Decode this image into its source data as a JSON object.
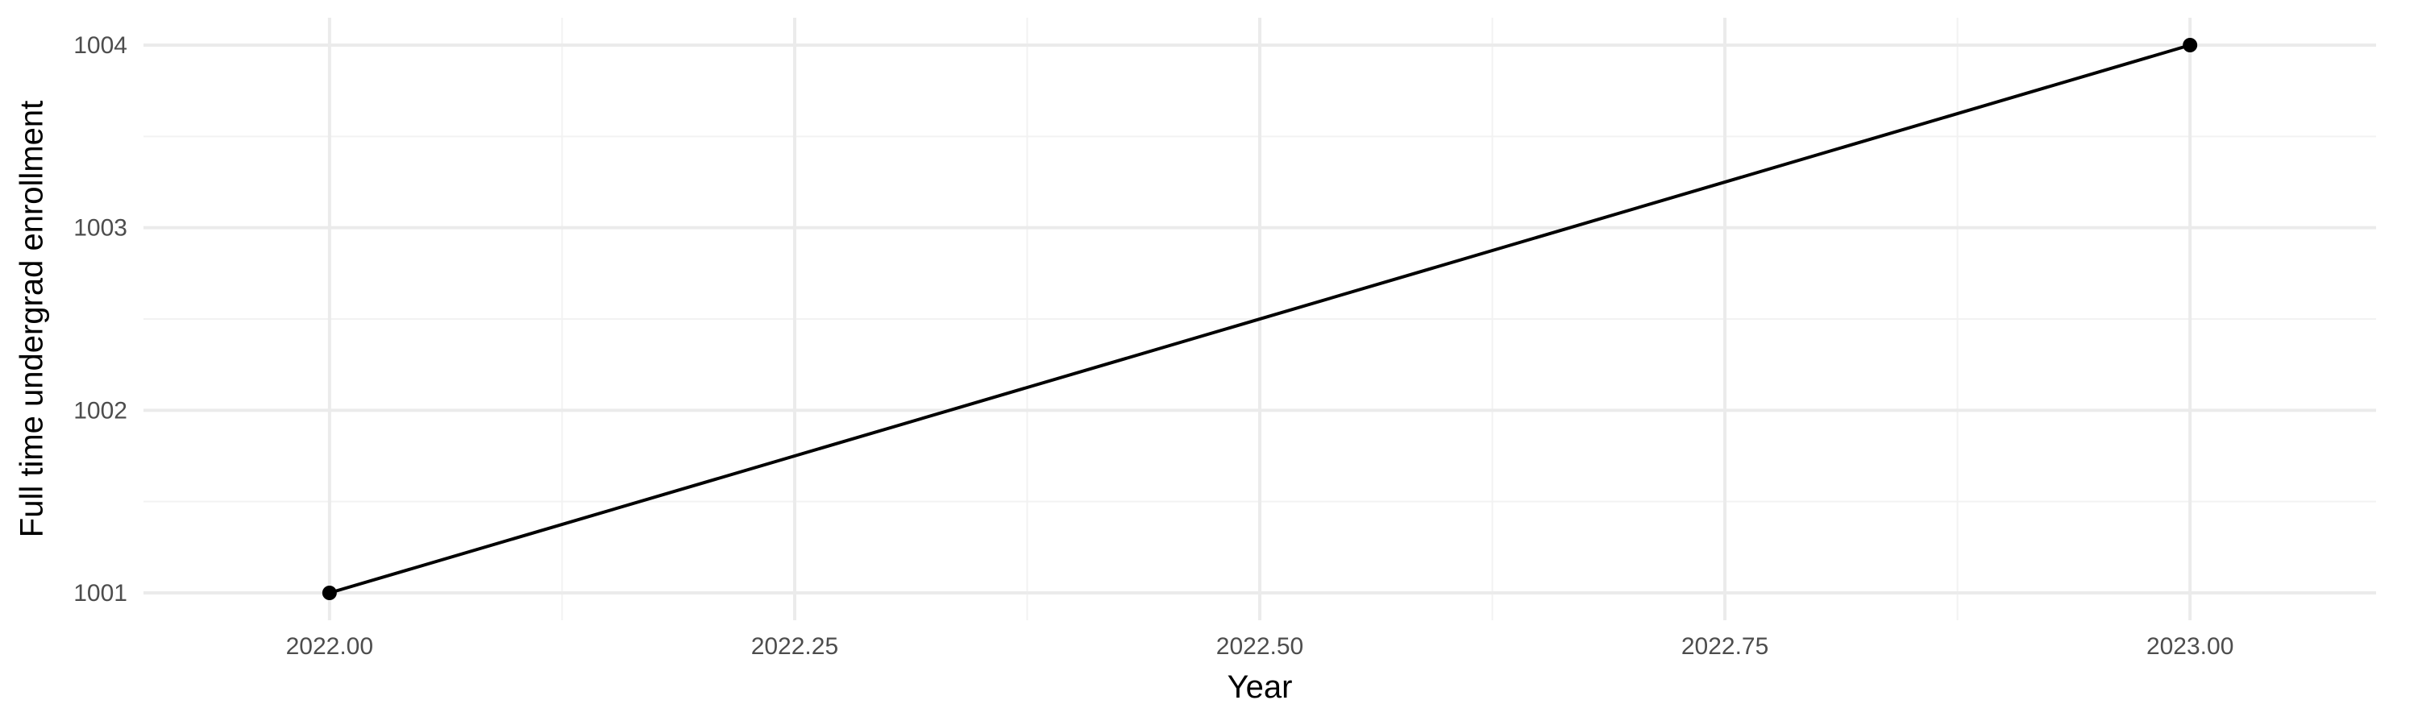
{
  "chart_data": {
    "type": "line",
    "title": "",
    "xlabel": "Year",
    "ylabel": "Full time undergrad enrollment",
    "x": [
      2022,
      2023
    ],
    "series": [
      {
        "values": [
          1001,
          1004
        ],
        "color": "#000000",
        "markers": true
      }
    ],
    "xlim": [
      2021.9,
      2023.1
    ],
    "ylim": [
      1000.85,
      1004.15
    ],
    "x_ticks": [
      2022.0,
      2022.25,
      2022.5,
      2022.75,
      2023.0
    ],
    "x_tick_labels": [
      "2022.00",
      "2022.25",
      "2022.50",
      "2022.75",
      "2023.00"
    ],
    "y_ticks": [
      1001,
      1002,
      1003,
      1004
    ],
    "y_tick_labels": [
      "1001",
      "1002",
      "1003",
      "1004"
    ],
    "grid": true,
    "legend": "none",
    "background": "#ffffff",
    "grid_color": "#ebebeb"
  }
}
